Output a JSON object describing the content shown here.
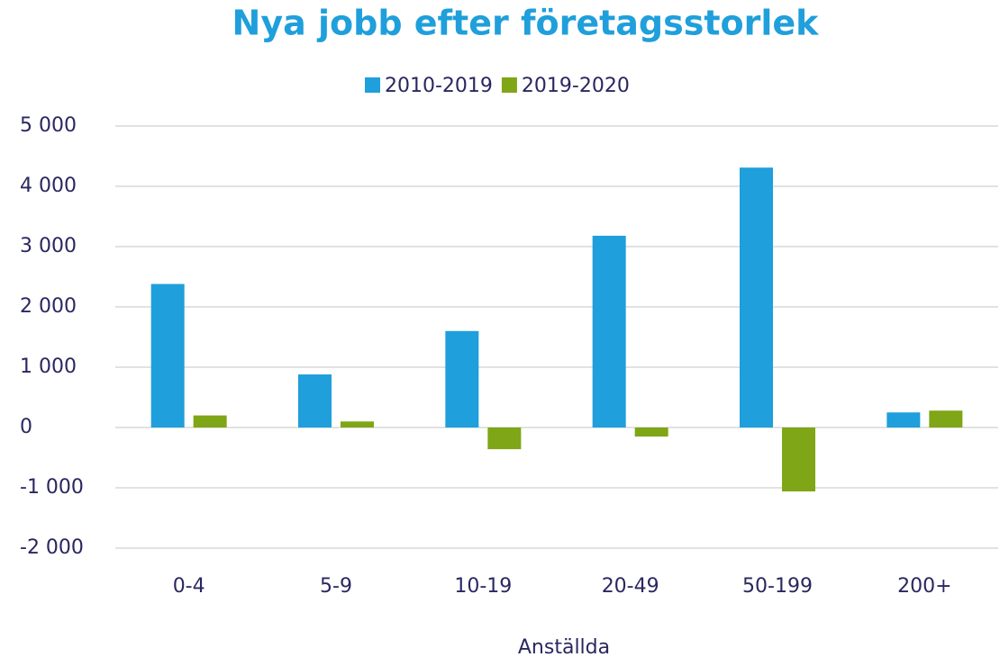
{
  "chart_data": {
    "type": "bar",
    "title": "Nya jobb efter företagsstorlek",
    "x_label": "Anställda",
    "categories": [
      "0-4",
      "5-9",
      "10-19",
      "20-49",
      "50-199",
      "200+"
    ],
    "series": [
      {
        "name": "2010-2019",
        "color": "#1f9fdb",
        "values": [
          2380,
          880,
          1600,
          3180,
          4310,
          250
        ]
      },
      {
        "name": "2019-2020",
        "color": "#7fa616",
        "values": [
          200,
          100,
          -360,
          -150,
          -1060,
          280
        ]
      }
    ],
    "ylim": [
      -2000,
      5000
    ],
    "yticks": [
      {
        "value": -2000,
        "label": "-2 000"
      },
      {
        "value": -1000,
        "label": "-1 000"
      },
      0,
      {
        "value": 1000,
        "label": "1 000"
      },
      {
        "value": 2000,
        "label": "2 000"
      },
      {
        "value": 3000,
        "label": "3 000"
      },
      {
        "value": 4000,
        "label": "4 000"
      },
      {
        "value": 5000,
        "label": "5 000"
      }
    ],
    "grid": true,
    "legend": "top"
  }
}
